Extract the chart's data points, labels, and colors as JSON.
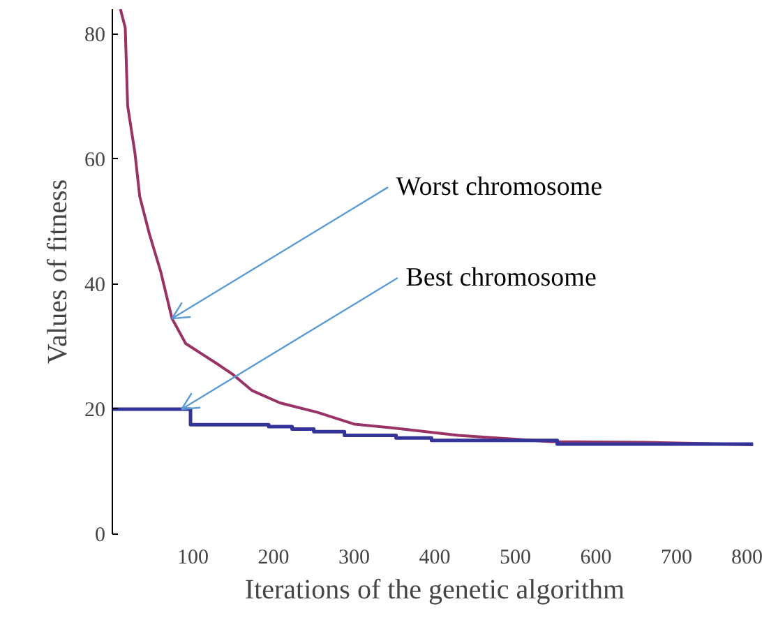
{
  "chart_data": {
    "type": "line",
    "xlabel": "Iterations of the genetic algorithm",
    "ylabel": "Values of fitness",
    "xlim": [
      0,
      800
    ],
    "ylim": [
      0,
      84
    ],
    "xticks": [
      100,
      200,
      300,
      400,
      500,
      600,
      700,
      800
    ],
    "yticks": [
      0,
      20,
      40,
      60,
      80
    ],
    "grid": false,
    "line_style": "solid",
    "marker": "none",
    "series": [
      {
        "color": "#993366",
        "x": [
          10,
          16,
          19,
          28,
          34,
          46,
          60,
          74,
          91,
          115,
          133,
          150,
          173,
          208,
          254,
          300,
          347,
          429,
          544,
          660,
          795
        ],
        "values": [
          84,
          81,
          68.5,
          61,
          54,
          48,
          42,
          34.5,
          30.5,
          28.5,
          27,
          25.5,
          23,
          21,
          19.5,
          17.6,
          17,
          15.8,
          14.8,
          14.7,
          14.3
        ]
      },
      {
        "type": "step",
        "color": "#333399",
        "x": [
          0,
          97,
          194,
          223,
          250,
          288,
          352,
          396,
          552,
          795
        ],
        "values": [
          20,
          17.5,
          17.2,
          16.8,
          16.4,
          15.8,
          15.4,
          15,
          14.4,
          14.4
        ]
      }
    ],
    "annotations": [
      {
        "text": "Worst chromosome",
        "x": 74,
        "y": 34.5
      },
      {
        "text": "Best chromosome",
        "x": 86,
        "y": 20
      }
    ]
  }
}
